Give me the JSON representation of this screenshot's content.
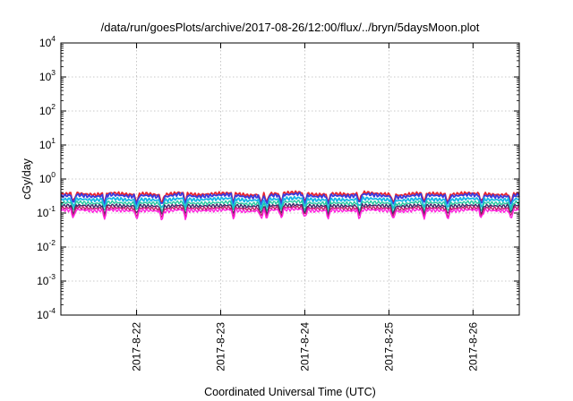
{
  "chart_data": {
    "type": "line",
    "title": "/data/run/goesPlots/archive/2017-08-26/12:00/flux/../bryn/5daysMoon.plot",
    "xlabel": "Coordinated Universal Time (UTC)",
    "ylabel": "cGy/day",
    "yscale": "log",
    "ylim": [
      0.0001,
      10000
    ],
    "xlim": [
      21.1,
      26.55
    ],
    "grid": true,
    "x_ticks": [
      {
        "value": 22,
        "label": "2017-8-22"
      },
      {
        "value": 23,
        "label": "2017-8-23"
      },
      {
        "value": 24,
        "label": "2017-8-24"
      },
      {
        "value": 25,
        "label": "2017-8-25"
      },
      {
        "value": 26,
        "label": "2017-8-26"
      }
    ],
    "y_ticks": [
      {
        "value": 0.0001,
        "base": "10",
        "exp": "-4"
      },
      {
        "value": 0.001,
        "base": "10",
        "exp": "-3"
      },
      {
        "value": 0.01,
        "base": "10",
        "exp": "-2"
      },
      {
        "value": 0.1,
        "base": "10",
        "exp": "-1"
      },
      {
        "value": 1,
        "base": "10",
        "exp": "0"
      },
      {
        "value": 10,
        "base": "10",
        "exp": "1"
      },
      {
        "value": 100,
        "base": "10",
        "exp": "2"
      },
      {
        "value": 1000,
        "base": "10",
        "exp": "3"
      },
      {
        "value": 10000,
        "base": "10",
        "exp": "4"
      }
    ],
    "series": [
      {
        "color": "#e8232e",
        "values": [
          0.36,
          0.38,
          0.34,
          0.39,
          0.35,
          0.37,
          0.33,
          0.4,
          0.34,
          0.37,
          0.39,
          0.33,
          0.36,
          0.38,
          0.41,
          0.34,
          0.37,
          0.35,
          0.4,
          0.36,
          0.33,
          0.38,
          0.37,
          0.35,
          0.39,
          0.36,
          0.34,
          0.38
        ]
      },
      {
        "color": "#3b3bdc",
        "values": [
          0.32,
          0.34,
          0.3,
          0.35,
          0.31,
          0.33,
          0.29,
          0.36,
          0.3,
          0.33,
          0.35,
          0.29,
          0.32,
          0.34,
          0.37,
          0.3,
          0.33,
          0.31,
          0.36,
          0.32,
          0.29,
          0.34,
          0.33,
          0.31,
          0.35,
          0.32,
          0.3,
          0.34
        ]
      },
      {
        "color": "#18b6e6",
        "values": [
          0.25,
          0.26,
          0.24,
          0.27,
          0.24,
          0.25,
          0.23,
          0.27,
          0.24,
          0.26,
          0.27,
          0.23,
          0.25,
          0.26,
          0.28,
          0.24,
          0.25,
          0.24,
          0.27,
          0.25,
          0.23,
          0.26,
          0.25,
          0.24,
          0.27,
          0.25,
          0.24,
          0.26
        ]
      },
      {
        "color": "#23c9a0",
        "values": [
          0.2,
          0.21,
          0.19,
          0.21,
          0.19,
          0.2,
          0.19,
          0.21,
          0.19,
          0.2,
          0.21,
          0.18,
          0.2,
          0.21,
          0.22,
          0.19,
          0.2,
          0.19,
          0.21,
          0.2,
          0.18,
          0.21,
          0.2,
          0.19,
          0.21,
          0.2,
          0.19,
          0.21
        ]
      },
      {
        "color": "#3a2a6b",
        "values": [
          0.165,
          0.17,
          0.16,
          0.17,
          0.16,
          0.165,
          0.155,
          0.17,
          0.16,
          0.165,
          0.17,
          0.155,
          0.165,
          0.17,
          0.175,
          0.16,
          0.165,
          0.16,
          0.17,
          0.165,
          0.155,
          0.17,
          0.165,
          0.16,
          0.17,
          0.165,
          0.16,
          0.17
        ]
      },
      {
        "color": "#c0196a",
        "values": [
          0.14,
          0.145,
          0.135,
          0.145,
          0.135,
          0.14,
          0.13,
          0.145,
          0.135,
          0.14,
          0.145,
          0.13,
          0.14,
          0.145,
          0.15,
          0.135,
          0.14,
          0.135,
          0.145,
          0.14,
          0.13,
          0.145,
          0.14,
          0.135,
          0.145,
          0.14,
          0.135,
          0.145
        ]
      },
      {
        "color": "#ff22dd",
        "values": [
          0.12,
          0.125,
          0.115,
          0.125,
          0.115,
          0.12,
          0.11,
          0.125,
          0.115,
          0.12,
          0.125,
          0.11,
          0.12,
          0.125,
          0.13,
          0.115,
          0.12,
          0.115,
          0.125,
          0.12,
          0.11,
          0.125,
          0.12,
          0.115,
          0.125,
          0.12,
          0.115,
          0.125
        ]
      }
    ],
    "dips": [
      {
        "x": 21.25,
        "min": 0.065
      },
      {
        "x": 21.62,
        "min": 0.09
      },
      {
        "x": 22.0,
        "min": 0.1
      },
      {
        "x": 22.3,
        "min": 0.08
      },
      {
        "x": 22.58,
        "min": 0.095
      },
      {
        "x": 23.15,
        "min": 0.065
      },
      {
        "x": 23.48,
        "min": 0.055
      },
      {
        "x": 23.55,
        "min": 0.09
      },
      {
        "x": 23.72,
        "min": 0.085
      },
      {
        "x": 24.0,
        "min": 0.1
      },
      {
        "x": 24.28,
        "min": 0.09
      },
      {
        "x": 24.65,
        "min": 0.07
      },
      {
        "x": 25.05,
        "min": 0.06
      },
      {
        "x": 25.42,
        "min": 0.085
      },
      {
        "x": 25.7,
        "min": 0.06
      },
      {
        "x": 26.1,
        "min": 0.09
      },
      {
        "x": 26.45,
        "min": 0.1
      }
    ]
  }
}
